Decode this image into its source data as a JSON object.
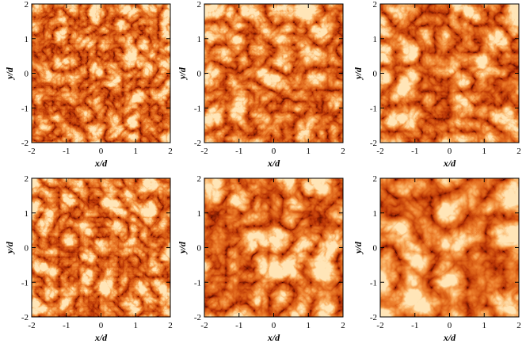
{
  "chart_data": [
    {
      "type": "image",
      "xlabel": "x/d",
      "ylabel": "y/d",
      "xlim": [
        -2,
        2
      ],
      "ylim": [
        -2,
        2
      ],
      "xticks": [
        -2,
        -1,
        0,
        1,
        2
      ],
      "yticks": [
        -2,
        -1,
        0,
        1,
        2
      ]
    },
    {
      "type": "image",
      "xlabel": "x/d",
      "ylabel": "y/d",
      "xlim": [
        -2,
        2
      ],
      "ylim": [
        -2,
        2
      ],
      "xticks": [
        -2,
        -1,
        0,
        1,
        2
      ],
      "yticks": [
        -2,
        -1,
        0,
        1,
        2
      ]
    },
    {
      "type": "image",
      "xlabel": "x/d",
      "ylabel": "y/d",
      "xlim": [
        -2,
        2
      ],
      "ylim": [
        -2,
        2
      ],
      "xticks": [
        -2,
        -1,
        0,
        1,
        2
      ],
      "yticks": [
        -2,
        -1,
        0,
        1,
        2
      ]
    },
    {
      "type": "image",
      "xlabel": "x/d",
      "ylabel": "y/d",
      "xlim": [
        -2,
        2
      ],
      "ylim": [
        -2,
        2
      ],
      "xticks": [
        -2,
        -1,
        0,
        1,
        2
      ],
      "yticks": [
        -2,
        -1,
        0,
        1,
        2
      ]
    },
    {
      "type": "image",
      "xlabel": "x/d",
      "ylabel": "y/d",
      "xlim": [
        -2,
        2
      ],
      "ylim": [
        -2,
        2
      ],
      "xticks": [
        -2,
        -1,
        0,
        1,
        2
      ],
      "yticks": [
        -2,
        -1,
        0,
        1,
        2
      ]
    },
    {
      "type": "image",
      "xlabel": "x/d",
      "ylabel": "y/d",
      "xlim": [
        -2,
        2
      ],
      "ylim": [
        -2,
        2
      ],
      "xticks": [
        -2,
        -1,
        0,
        1,
        2
      ],
      "yticks": [
        -2,
        -1,
        0,
        1,
        2
      ]
    }
  ]
}
